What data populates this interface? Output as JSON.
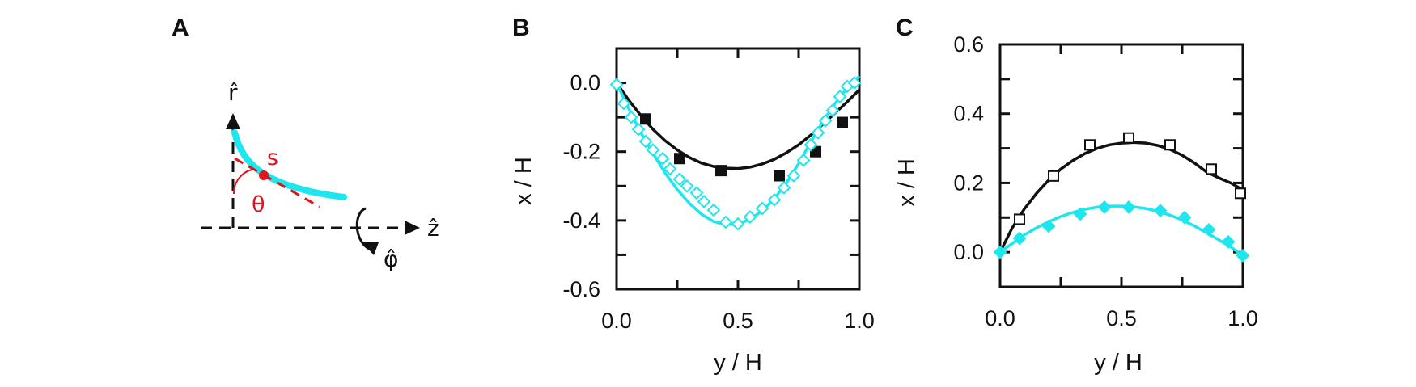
{
  "colors": {
    "black": "#111111",
    "cyan": "#1de6ee",
    "red": "#e0141e"
  },
  "panel_a": {
    "label": "A",
    "r_label": "r̂",
    "z_label": "ẑ",
    "phi_label": "φ̂",
    "s_label": "s",
    "theta_label": "θ"
  },
  "chart_data": [
    {
      "id": "B",
      "type": "line",
      "panel_label": "B",
      "xlabel": "y / H",
      "ylabel": "x / H",
      "xlim": [
        0,
        1
      ],
      "ylim": [
        -0.6,
        0.1
      ],
      "xticks": [
        0,
        0.25,
        0.5,
        0.75,
        1.0
      ],
      "xtick_labels": [
        "0.0",
        "",
        "0.5",
        "",
        "1.0"
      ],
      "yticks": [
        0.0,
        -0.1,
        -0.2,
        -0.3,
        -0.4,
        -0.5,
        -0.6
      ],
      "ytick_labels": [
        "0.0",
        "",
        "-0.2",
        "",
        "-0.4",
        "",
        "-0.6"
      ],
      "series": [
        {
          "name": "black fit",
          "kind": "line",
          "color_key": "black",
          "x": [
            0,
            0.05,
            0.1,
            0.15,
            0.2,
            0.25,
            0.3,
            0.35,
            0.4,
            0.45,
            0.5,
            0.55,
            0.6,
            0.65,
            0.7,
            0.75,
            0.8,
            0.85,
            0.9,
            0.95,
            1.0
          ],
          "y": [
            0.0,
            -0.05,
            -0.095,
            -0.135,
            -0.168,
            -0.195,
            -0.217,
            -0.233,
            -0.243,
            -0.248,
            -0.249,
            -0.245,
            -0.236,
            -0.222,
            -0.203,
            -0.18,
            -0.152,
            -0.12,
            -0.088,
            -0.055,
            -0.02
          ]
        },
        {
          "name": "black data",
          "kind": "marker",
          "marker": "filled-square",
          "color_key": "black",
          "x": [
            0.12,
            0.26,
            0.43,
            0.67,
            0.82,
            0.93
          ],
          "y": [
            -0.105,
            -0.22,
            -0.255,
            -0.27,
            -0.2,
            -0.115
          ]
        },
        {
          "name": "cyan fit",
          "kind": "line",
          "color_key": "cyan",
          "x": [
            0,
            0.05,
            0.1,
            0.15,
            0.2,
            0.25,
            0.3,
            0.35,
            0.4,
            0.45,
            0.5,
            0.55,
            0.6,
            0.65,
            0.7,
            0.75,
            0.8,
            0.85,
            0.9,
            0.95,
            1.0
          ],
          "y": [
            0.0,
            -0.075,
            -0.145,
            -0.205,
            -0.262,
            -0.31,
            -0.35,
            -0.382,
            -0.403,
            -0.412,
            -0.41,
            -0.397,
            -0.372,
            -0.337,
            -0.29,
            -0.235,
            -0.172,
            -0.112,
            -0.06,
            -0.015,
            0.02
          ]
        },
        {
          "name": "cyan data",
          "kind": "marker",
          "marker": "open-diamond",
          "color_key": "cyan",
          "x": [
            0.0,
            0.03,
            0.06,
            0.09,
            0.12,
            0.15,
            0.19,
            0.22,
            0.26,
            0.29,
            0.33,
            0.36,
            0.4,
            0.45,
            0.5,
            0.55,
            0.6,
            0.65,
            0.69,
            0.73,
            0.77,
            0.8,
            0.83,
            0.86,
            0.89,
            0.92,
            0.95,
            0.98
          ],
          "y": [
            -0.005,
            -0.06,
            -0.1,
            -0.135,
            -0.17,
            -0.195,
            -0.22,
            -0.25,
            -0.28,
            -0.3,
            -0.32,
            -0.345,
            -0.37,
            -0.405,
            -0.41,
            -0.39,
            -0.365,
            -0.34,
            -0.305,
            -0.27,
            -0.225,
            -0.18,
            -0.145,
            -0.11,
            -0.08,
            -0.04,
            -0.01,
            0.0
          ]
        }
      ]
    },
    {
      "id": "C",
      "type": "line",
      "panel_label": "C",
      "xlabel": "y / H",
      "ylabel": "x / H",
      "xlim": [
        0,
        1
      ],
      "ylim": [
        -0.1,
        0.6
      ],
      "xticks": [
        0,
        0.25,
        0.5,
        0.75,
        1.0
      ],
      "xtick_labels": [
        "0.0",
        "",
        "0.5",
        "",
        "1.0"
      ],
      "yticks": [
        0.6,
        0.5,
        0.4,
        0.3,
        0.2,
        0.1,
        0.0,
        -0.1
      ],
      "ytick_labels": [
        "0.6",
        "",
        "0.4",
        "",
        "0.2",
        "",
        "0.0",
        ""
      ],
      "series": [
        {
          "name": "black fit",
          "kind": "line",
          "color_key": "black",
          "x": [
            0,
            0.05,
            0.1,
            0.15,
            0.2,
            0.25,
            0.3,
            0.35,
            0.4,
            0.45,
            0.5,
            0.55,
            0.6,
            0.65,
            0.7,
            0.75,
            0.8,
            0.85,
            0.9,
            0.95,
            1.0
          ],
          "y": [
            0.0,
            0.07,
            0.125,
            0.17,
            0.208,
            0.24,
            0.265,
            0.285,
            0.3,
            0.31,
            0.315,
            0.317,
            0.315,
            0.308,
            0.297,
            0.28,
            0.258,
            0.232,
            0.215,
            0.2,
            0.18
          ]
        },
        {
          "name": "black data",
          "kind": "marker",
          "marker": "open-square",
          "color_key": "black",
          "x": [
            0.08,
            0.22,
            0.37,
            0.53,
            0.7,
            0.87,
            0.99
          ],
          "y": [
            0.095,
            0.22,
            0.31,
            0.33,
            0.31,
            0.24,
            0.17
          ]
        },
        {
          "name": "cyan fit",
          "kind": "line",
          "color_key": "cyan",
          "x": [
            0,
            0.05,
            0.1,
            0.15,
            0.2,
            0.25,
            0.3,
            0.35,
            0.4,
            0.45,
            0.5,
            0.55,
            0.6,
            0.65,
            0.7,
            0.75,
            0.8,
            0.85,
            0.9,
            0.95,
            1.0
          ],
          "y": [
            0.0,
            0.025,
            0.05,
            0.07,
            0.088,
            0.103,
            0.115,
            0.124,
            0.13,
            0.133,
            0.133,
            0.131,
            0.126,
            0.118,
            0.107,
            0.093,
            0.076,
            0.056,
            0.036,
            0.015,
            -0.01
          ]
        },
        {
          "name": "cyan data",
          "kind": "marker",
          "marker": "filled-diamond",
          "color_key": "cyan",
          "x": [
            0.0,
            0.08,
            0.2,
            0.33,
            0.43,
            0.53,
            0.66,
            0.76,
            0.86,
            0.94,
            1.0
          ],
          "y": [
            0.0,
            0.04,
            0.075,
            0.11,
            0.13,
            0.13,
            0.12,
            0.1,
            0.065,
            0.03,
            -0.01
          ]
        }
      ]
    }
  ]
}
